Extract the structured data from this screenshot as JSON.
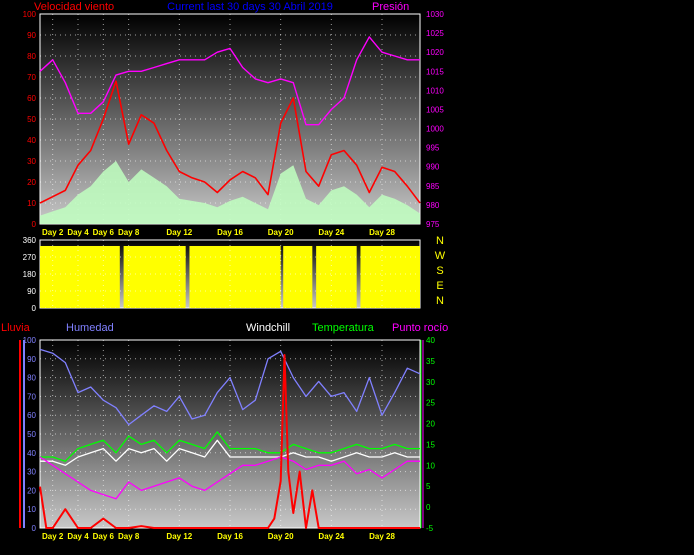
{
  "chart_data": [
    {
      "type": "line",
      "panel": "wind-pressure",
      "title": "Current last 30 days 30 Abril 2019",
      "left_label": "Velocidad viento",
      "right_label": "Presión",
      "ylim": [
        0,
        100
      ],
      "y_ticks": [
        0,
        10,
        20,
        30,
        40,
        50,
        60,
        70,
        80,
        90,
        100
      ],
      "y2lim": [
        975,
        1030
      ],
      "y2_ticks": [
        975,
        980,
        985,
        990,
        995,
        1000,
        1005,
        1010,
        1015,
        1020,
        1025,
        1030
      ],
      "x_ticks": [
        "Day 2",
        "Day 4",
        "Day 6",
        "Day 8",
        "Day 12",
        "Day 16",
        "Day 20",
        "Day 24",
        "Day 28"
      ],
      "x_tick_days": [
        2,
        4,
        6,
        8,
        12,
        16,
        20,
        24,
        28
      ],
      "series": [
        {
          "name": "Velocidad viento",
          "color": "#ff0000",
          "axis": "left",
          "x": [
            1,
            2,
            3,
            4,
            5,
            6,
            7,
            8,
            9,
            10,
            11,
            12,
            13,
            14,
            15,
            16,
            17,
            18,
            19,
            20,
            21,
            22,
            23,
            24,
            25,
            26,
            27,
            28,
            29,
            30,
            31
          ],
          "values": [
            10,
            13,
            16,
            28,
            35,
            50,
            68,
            38,
            52,
            48,
            35,
            25,
            22,
            20,
            15,
            21,
            25,
            22,
            14,
            48,
            60,
            25,
            18,
            33,
            35,
            28,
            15,
            27,
            25,
            18,
            10
          ]
        },
        {
          "name": "Presión",
          "color": "#ff00ff",
          "axis": "right",
          "x": [
            1,
            2,
            3,
            4,
            5,
            6,
            7,
            8,
            9,
            10,
            11,
            12,
            13,
            14,
            15,
            16,
            17,
            18,
            19,
            20,
            21,
            22,
            23,
            24,
            25,
            26,
            27,
            28,
            29,
            30,
            31
          ],
          "values": [
            1015,
            1018,
            1012,
            1004,
            1004,
            1007,
            1014,
            1015,
            1015,
            1016,
            1017,
            1018,
            1018,
            1018,
            1020,
            1021,
            1016,
            1013,
            1012,
            1013,
            1012,
            1001,
            1001,
            1005,
            1008,
            1018,
            1024,
            1020,
            1019,
            1018,
            1018
          ]
        },
        {
          "name": "gust",
          "color": "#c0ffc0",
          "axis": "left",
          "x": [
            1,
            2,
            3,
            4,
            5,
            6,
            7,
            8,
            9,
            10,
            11,
            12,
            13,
            14,
            15,
            16,
            17,
            18,
            19,
            20,
            21,
            22,
            23,
            24,
            25,
            26,
            27,
            28,
            29,
            30,
            31
          ],
          "values": [
            4,
            6,
            8,
            14,
            18,
            25,
            30,
            20,
            26,
            22,
            18,
            12,
            11,
            10,
            8,
            11,
            13,
            10,
            7,
            24,
            28,
            12,
            9,
            16,
            18,
            14,
            8,
            14,
            12,
            9,
            5
          ]
        }
      ]
    },
    {
      "type": "bar",
      "panel": "wind-direction",
      "ylim": [
        0,
        360
      ],
      "y_ticks": [
        0,
        90,
        180,
        270,
        360
      ],
      "compass": [
        "N",
        "W",
        "S",
        "E",
        "N"
      ],
      "color": "#ffff00"
    },
    {
      "type": "line",
      "panel": "temp-humidity",
      "labels": {
        "lluvia": "Lluvia",
        "humedad": "Humedad",
        "windchill": "Windchill",
        "temperatura": "Temperatura",
        "rocio": "Punto rocío"
      },
      "ylim": [
        0,
        100
      ],
      "y_ticks": [
        0,
        10,
        20,
        30,
        40,
        50,
        60,
        70,
        80,
        90,
        100
      ],
      "y2lim": [
        -5,
        40
      ],
      "y2_ticks": [
        -5,
        0,
        5,
        10,
        15,
        20,
        25,
        30,
        35,
        40
      ],
      "x_ticks": [
        "Day 2",
        "Day 4",
        "Day 6",
        "Day 8",
        "Day 12",
        "Day 16",
        "Day 20",
        "Day 24",
        "Day 28"
      ],
      "x_tick_days": [
        2,
        4,
        6,
        8,
        12,
        16,
        20,
        24,
        28
      ],
      "series": [
        {
          "name": "Humedad",
          "color": "#8080ff",
          "axis": "left",
          "x": [
            1,
            2,
            3,
            4,
            5,
            6,
            7,
            8,
            9,
            10,
            11,
            12,
            13,
            14,
            15,
            16,
            17,
            18,
            19,
            20,
            21,
            22,
            23,
            24,
            25,
            26,
            27,
            28,
            29,
            30,
            31
          ],
          "values": [
            95,
            93,
            88,
            72,
            75,
            68,
            64,
            55,
            60,
            65,
            62,
            70,
            58,
            60,
            72,
            80,
            63,
            68,
            90,
            94,
            80,
            70,
            78,
            70,
            72,
            62,
            80,
            60,
            72,
            85,
            82
          ]
        },
        {
          "name": "Temperatura",
          "color": "#00ff00",
          "axis": "right",
          "x": [
            1,
            2,
            3,
            4,
            5,
            6,
            7,
            8,
            9,
            10,
            11,
            12,
            13,
            14,
            15,
            16,
            17,
            18,
            19,
            20,
            21,
            22,
            23,
            24,
            25,
            26,
            27,
            28,
            29,
            30,
            31
          ],
          "values": [
            12,
            12,
            11,
            14,
            15,
            16,
            13,
            17,
            15,
            16,
            13,
            16,
            15,
            14,
            18,
            14,
            14,
            14,
            13,
            13,
            15,
            14,
            13,
            13,
            14,
            15,
            14,
            14,
            15,
            14,
            14
          ]
        },
        {
          "name": "Windchill",
          "color": "#ffffff",
          "axis": "right",
          "x": [
            1,
            2,
            3,
            4,
            5,
            6,
            7,
            8,
            9,
            10,
            11,
            12,
            13,
            14,
            15,
            16,
            17,
            18,
            19,
            20,
            21,
            22,
            23,
            24,
            25,
            26,
            27,
            28,
            29,
            30,
            31
          ],
          "values": [
            11,
            11,
            10,
            12,
            13,
            14,
            11,
            14,
            13,
            14,
            11,
            14,
            13,
            12,
            16,
            12,
            12,
            12,
            12,
            12,
            13,
            12,
            12,
            11,
            12,
            13,
            12,
            12,
            13,
            12,
            12
          ]
        },
        {
          "name": "Punto rocío",
          "color": "#ff00ff",
          "axis": "right",
          "x": [
            1,
            2,
            3,
            4,
            5,
            6,
            7,
            8,
            9,
            10,
            11,
            12,
            13,
            14,
            15,
            16,
            17,
            18,
            19,
            20,
            21,
            22,
            23,
            24,
            25,
            26,
            27,
            28,
            29,
            30,
            31
          ],
          "values": [
            12,
            10,
            8,
            6,
            4,
            3,
            2,
            6,
            4,
            5,
            6,
            7,
            5,
            4,
            6,
            8,
            10,
            10,
            11,
            12,
            11,
            9,
            10,
            10,
            11,
            8,
            9,
            7,
            9,
            11,
            11
          ]
        },
        {
          "name": "Lluvia",
          "color": "#ff0000",
          "axis": "left",
          "x": [
            1,
            1.5,
            2,
            3,
            4,
            5,
            6,
            7,
            8,
            9,
            10,
            12,
            14,
            16,
            18,
            19,
            19.5,
            20,
            20.3,
            20.6,
            21,
            21.5,
            22,
            22.5,
            23,
            24,
            26,
            28,
            30,
            31
          ],
          "values": [
            22,
            0,
            0,
            10,
            0,
            0,
            5,
            0,
            0,
            1,
            0,
            0,
            0,
            0,
            0,
            0,
            5,
            25,
            92,
            30,
            8,
            30,
            0,
            20,
            0,
            0,
            0,
            0,
            0,
            0
          ]
        }
      ]
    }
  ]
}
